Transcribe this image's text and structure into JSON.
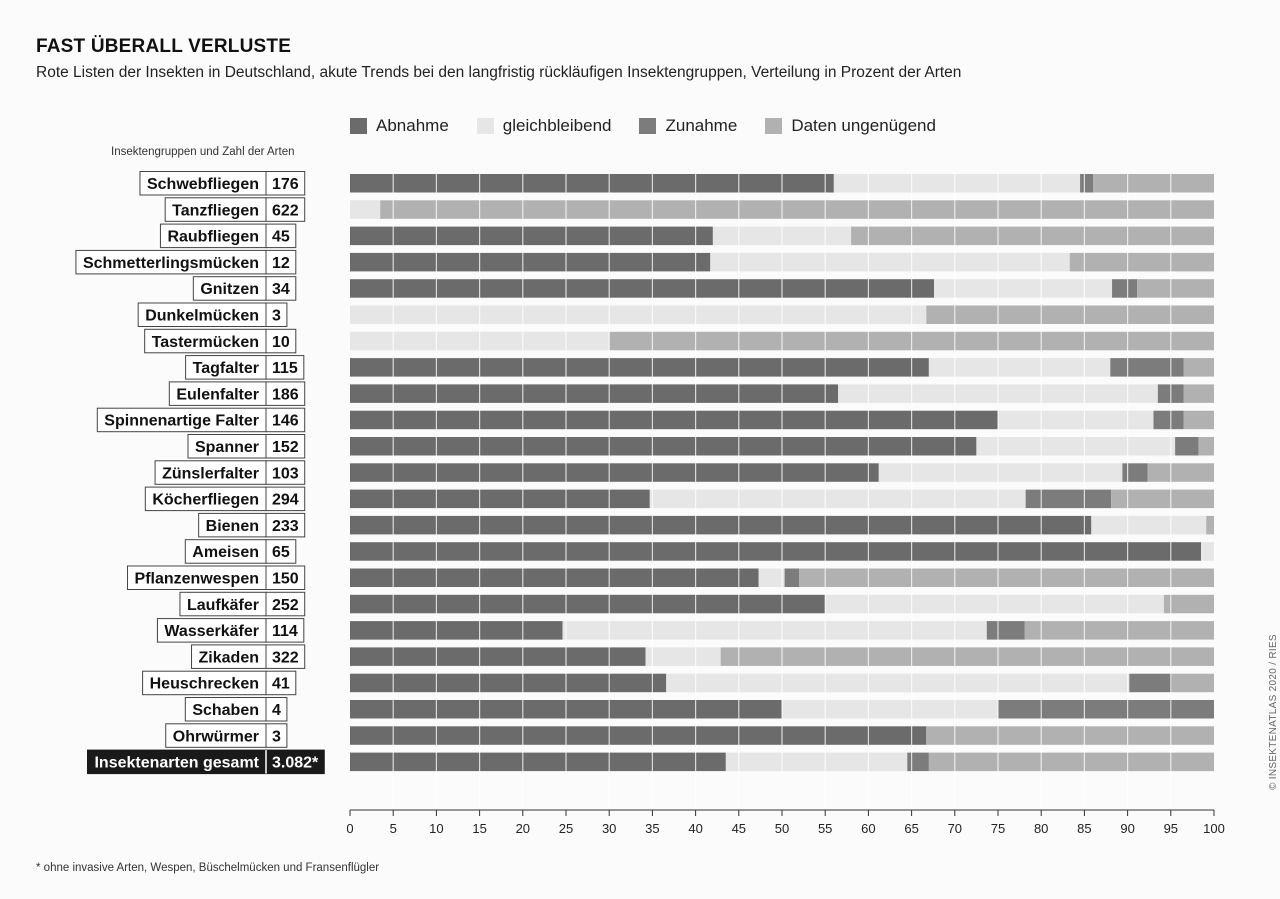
{
  "title": "FAST ÜBERALL VERLUSTE",
  "subtitle": "Rote Listen der Insekten in Deutschland, akute Trends bei den langfristig rückläufigen Insektengruppen, Verteilung in Prozent der Arten",
  "column_header": "Insektengruppen und Zahl der Arten",
  "footnote": "* ohne invasive Arten, Wespen, Büschelmücken und Fransenflügler",
  "credit": "INSEKTENATLAS 2020 / RIES",
  "colors": {
    "Abnahme": "#6b6b6b",
    "gleichbleibend": "#e6e6e6",
    "Zunahme": "#7c7c7c",
    "Daten ungenügend": "#b1b1b1",
    "total_label_bg": "#1a1a1a"
  },
  "chart_data": {
    "type": "bar",
    "orientation": "horizontal",
    "stacked": true,
    "xlabel": "",
    "ylabel": "",
    "xlim": [
      0,
      100
    ],
    "xticks": [
      0,
      5,
      10,
      15,
      20,
      25,
      30,
      35,
      40,
      45,
      50,
      55,
      60,
      65,
      70,
      75,
      80,
      85,
      90,
      95,
      100
    ],
    "grid": true,
    "legend_position": "top",
    "series": [
      {
        "name": "Abnahme"
      },
      {
        "name": "gleichbleibend"
      },
      {
        "name": "Zunahme"
      },
      {
        "name": "Daten ungenügend"
      }
    ],
    "rows": [
      {
        "label": "Schwebfliegen",
        "count": "176",
        "values": [
          56,
          28.5,
          1.5,
          14
        ]
      },
      {
        "label": "Tanzfliegen",
        "count": "622",
        "values": [
          0,
          3.5,
          0,
          96.5
        ]
      },
      {
        "label": "Raubfliegen",
        "count": "45",
        "values": [
          42,
          16,
          0,
          42
        ]
      },
      {
        "label": "Schmetterlingsmücken",
        "count": "12",
        "values": [
          41.7,
          41.6,
          0,
          16.7
        ]
      },
      {
        "label": "Gnitzen",
        "count": "34",
        "values": [
          67.6,
          20.6,
          2.9,
          8.9
        ]
      },
      {
        "label": "Dunkelmücken",
        "count": "3",
        "values": [
          0,
          66.7,
          0,
          33.3
        ]
      },
      {
        "label": "Tastermücken",
        "count": "10",
        "values": [
          0,
          30,
          0,
          70
        ]
      },
      {
        "label": "Tagfalter",
        "count": "115",
        "values": [
          67,
          21,
          8.5,
          3.5
        ]
      },
      {
        "label": "Eulenfalter",
        "count": "186",
        "values": [
          56.5,
          37,
          3,
          3.5
        ]
      },
      {
        "label": "Spinnenartige Falter",
        "count": "146",
        "values": [
          75,
          18,
          3.5,
          3.5
        ]
      },
      {
        "label": "Spanner",
        "count": "152",
        "values": [
          72.5,
          23,
          2.7,
          1.8
        ]
      },
      {
        "label": "Zünslerfalter",
        "count": "103",
        "values": [
          61.2,
          28.2,
          2.9,
          7.7
        ]
      },
      {
        "label": "Köcherfliegen",
        "count": "294",
        "values": [
          34.7,
          43.5,
          9.9,
          11.9
        ]
      },
      {
        "label": "Bienen",
        "count": "233",
        "values": [
          85.8,
          13.3,
          0,
          0.9
        ]
      },
      {
        "label": "Ameisen",
        "count": "65",
        "values": [
          98.5,
          1.5,
          0,
          0
        ]
      },
      {
        "label": "Pflanzenwespen",
        "count": "150",
        "values": [
          47.3,
          3,
          1.7,
          48
        ]
      },
      {
        "label": "Laufkäfer",
        "count": "252",
        "values": [
          55,
          39.2,
          0,
          5.8
        ]
      },
      {
        "label": "Wasserkäfer",
        "count": "114",
        "values": [
          24.6,
          49.1,
          4.4,
          21.9
        ]
      },
      {
        "label": "Zikaden",
        "count": "322",
        "values": [
          34.2,
          8.7,
          0,
          57.1
        ]
      },
      {
        "label": "Heuschrecken",
        "count": "41",
        "values": [
          36.6,
          53.6,
          4.9,
          4.9
        ]
      },
      {
        "label": "Schaben",
        "count": "4",
        "values": [
          50,
          25,
          25,
          0
        ]
      },
      {
        "label": "Ohrwürmer",
        "count": "3",
        "values": [
          66.7,
          0,
          0,
          33.3
        ]
      },
      {
        "label": "Insektenarten gesamt",
        "count": "3.082*",
        "values": [
          43.5,
          21,
          2.5,
          33
        ],
        "total": true
      }
    ]
  }
}
